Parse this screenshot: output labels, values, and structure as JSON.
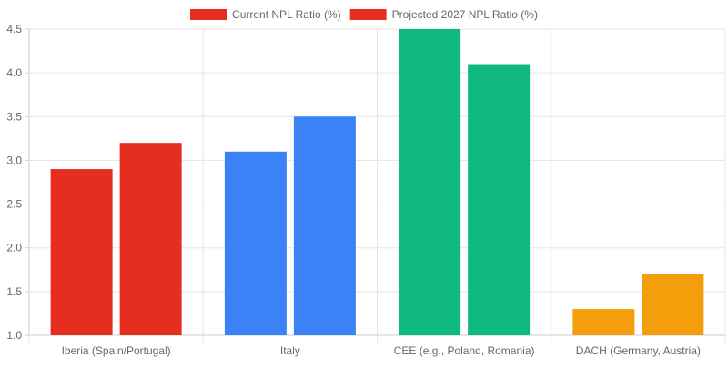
{
  "chart_data": {
    "type": "bar",
    "categories": [
      "Iberia (Spain/Portugal)",
      "Italy",
      "CEE (e.g., Poland, Romania)",
      "DACH (Germany, Austria)"
    ],
    "series": [
      {
        "name": "Current NPL Ratio (%)",
        "values": [
          2.9,
          3.1,
          4.5,
          1.3
        ]
      },
      {
        "name": "Projected 2027 NPL Ratio (%)",
        "values": [
          3.2,
          3.5,
          4.1,
          1.7
        ]
      }
    ],
    "category_colors": [
      "#e52e1f",
      "#3b82f6",
      "#10b981",
      "#f59e0b"
    ],
    "legend_colors": [
      "#e52e1f",
      "#e52e1f"
    ],
    "legend_position": "top",
    "ylim": [
      1.0,
      4.5
    ],
    "yticks": [
      "1.0",
      "1.5",
      "2.0",
      "2.5",
      "3.0",
      "3.5",
      "4.0",
      "4.5"
    ],
    "grid": true,
    "title": "",
    "xlabel": "",
    "ylabel": ""
  }
}
